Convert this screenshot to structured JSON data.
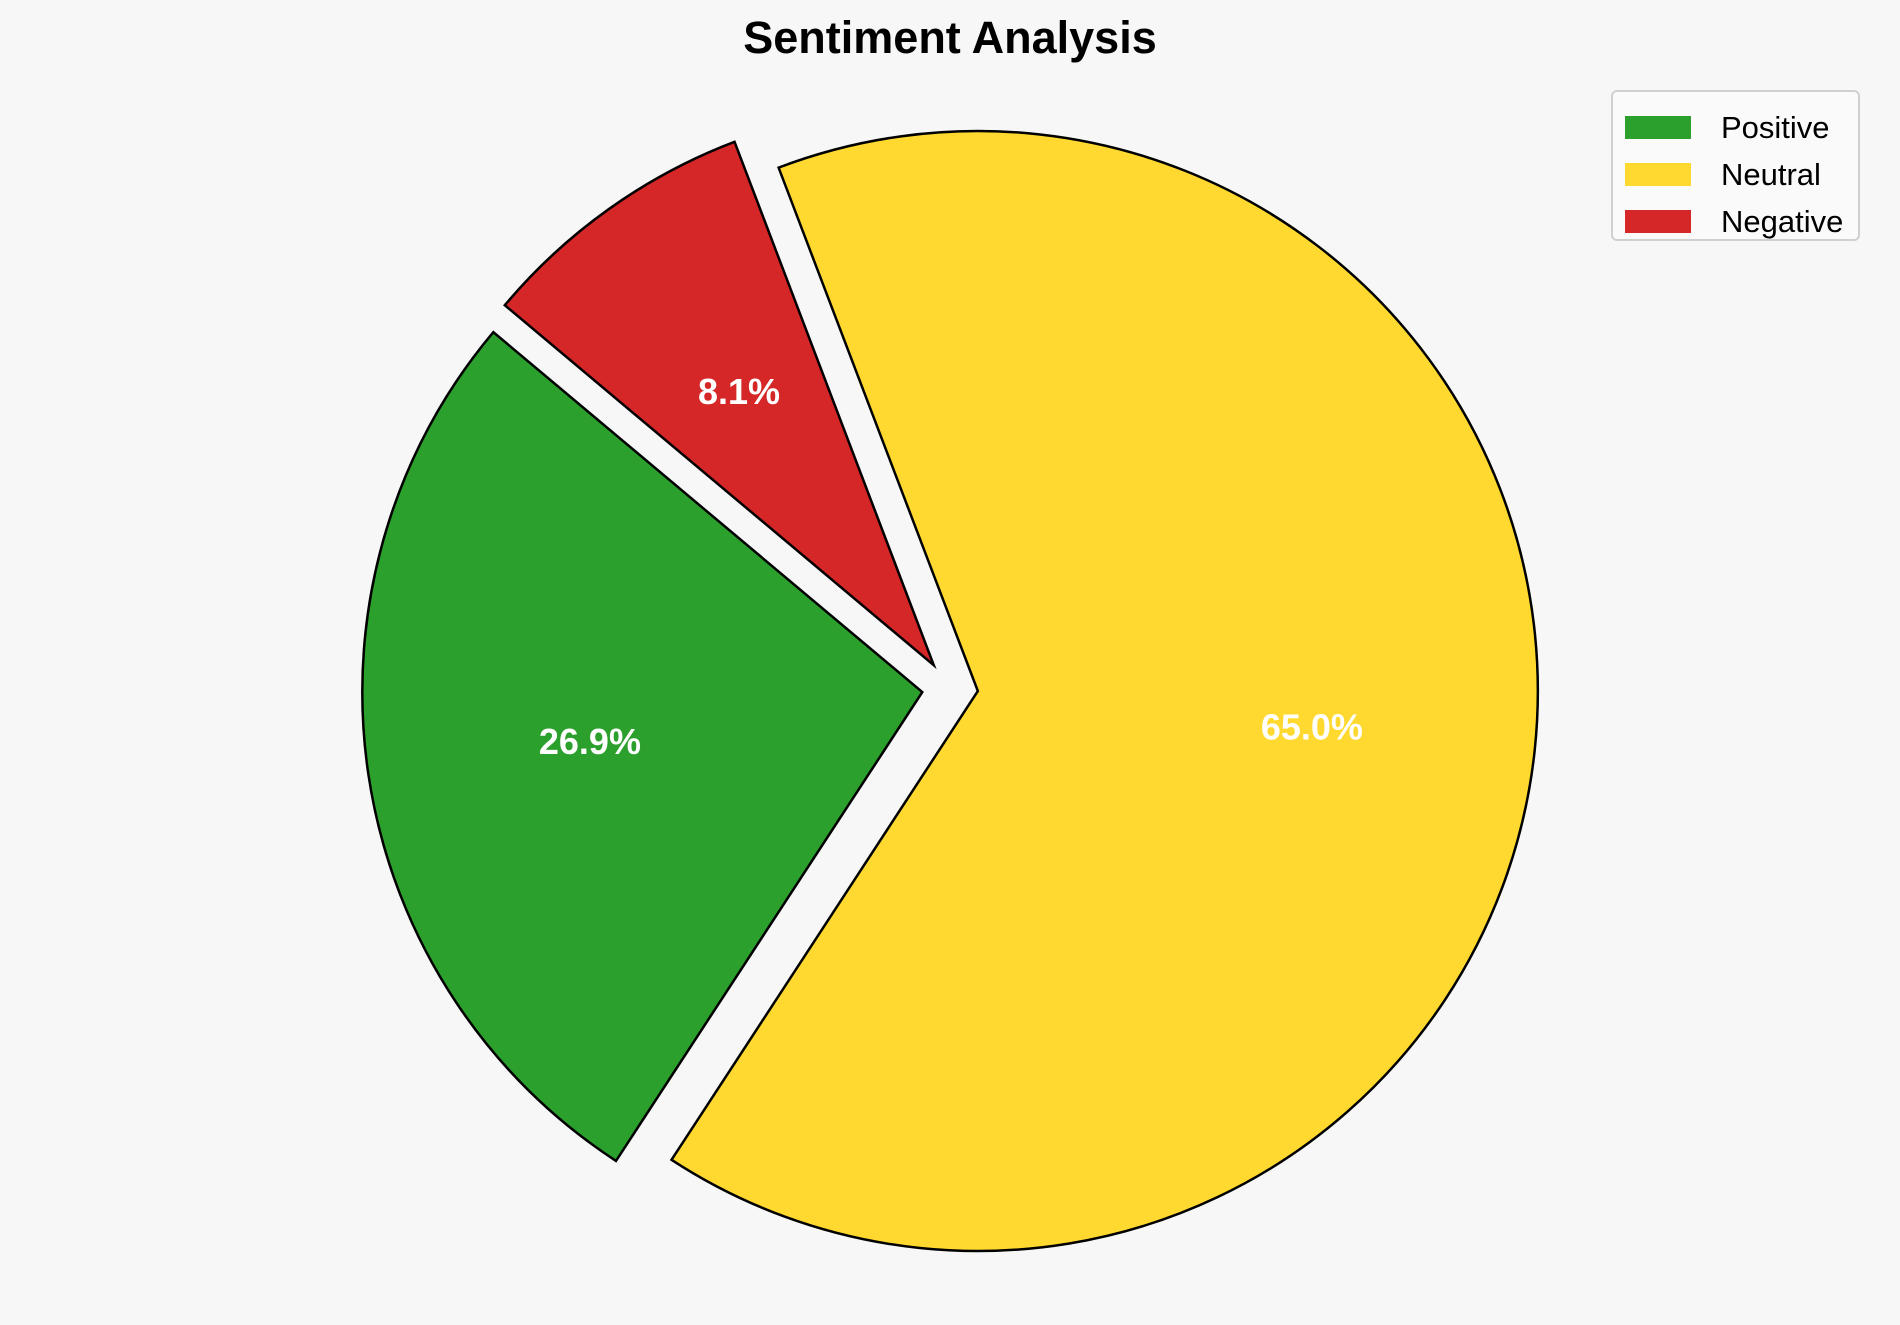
{
  "chart_data": {
    "type": "pie",
    "title": "Sentiment Analysis",
    "categories": [
      "Positive",
      "Neutral",
      "Negative"
    ],
    "values": [
      26.9,
      65.0,
      8.1
    ],
    "labels": [
      "26.9%",
      "65.0%",
      "8.1%"
    ],
    "colors": [
      "#2ca02c",
      "#ffd92f",
      "#d62728"
    ],
    "explode": [
      0.05,
      0.05,
      0.05
    ],
    "start_angle": 140,
    "legend_placement": "top-right"
  }
}
